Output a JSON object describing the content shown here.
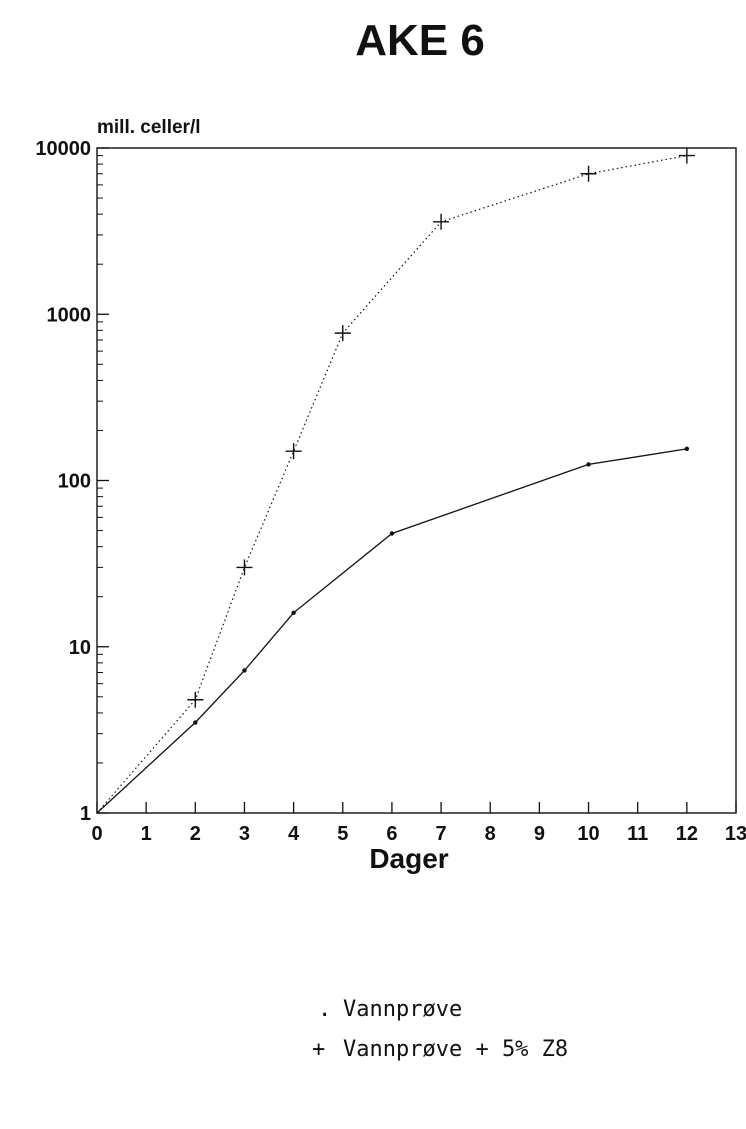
{
  "chart_data": {
    "type": "line",
    "title": "AKE 6",
    "ylabel": "mill. celler/l",
    "xlabel": "Dager",
    "yscale": "log",
    "xlim": [
      0,
      13
    ],
    "ylim": [
      1,
      10000
    ],
    "xticks": [
      "0",
      "1",
      "2",
      "3",
      "4",
      "5",
      "6",
      "7",
      "8",
      "9",
      "10",
      "11",
      "12",
      "13"
    ],
    "yticks": [
      "1",
      "10",
      "100",
      "1000",
      "10000"
    ],
    "grid": false,
    "legend_position": "bottom",
    "series": [
      {
        "name": "Vannprøve",
        "marker": ".",
        "line_style": "solid",
        "x": [
          0,
          2,
          3,
          4,
          6,
          10,
          12
        ],
        "y": [
          1,
          3.5,
          7.2,
          16,
          48,
          125,
          155
        ]
      },
      {
        "name": "Vannprøve + 5% Z8",
        "marker": "+",
        "line_style": "dotted",
        "x": [
          0,
          2,
          3,
          4,
          5,
          7,
          10,
          12
        ],
        "y": [
          1,
          4.8,
          30,
          150,
          770,
          3600,
          7000,
          9000
        ]
      }
    ]
  }
}
